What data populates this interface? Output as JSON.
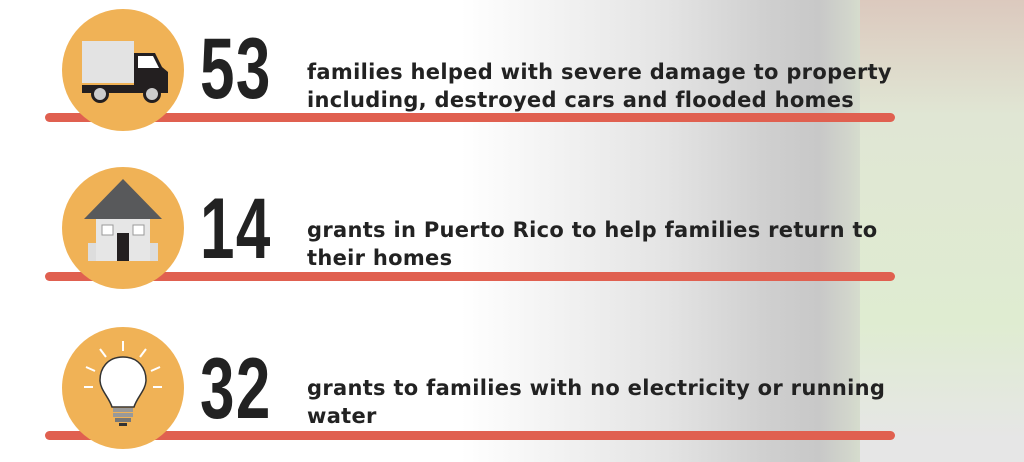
{
  "colors": {
    "accent_bar": "#e06050",
    "circle": "#f0b256",
    "text": "#222222"
  },
  "stats": [
    {
      "number": "53",
      "icon": "truck-icon",
      "line1": "families helped with severe damage to property",
      "line2": "including, destroyed cars and flooded homes"
    },
    {
      "number": "14",
      "icon": "house-icon",
      "line1": "grants in Puerto Rico to help families return to",
      "line2": "their homes"
    },
    {
      "number": "32",
      "icon": "lightbulb-icon",
      "line1": "grants to families with no electricity or running",
      "line2": "water"
    }
  ]
}
